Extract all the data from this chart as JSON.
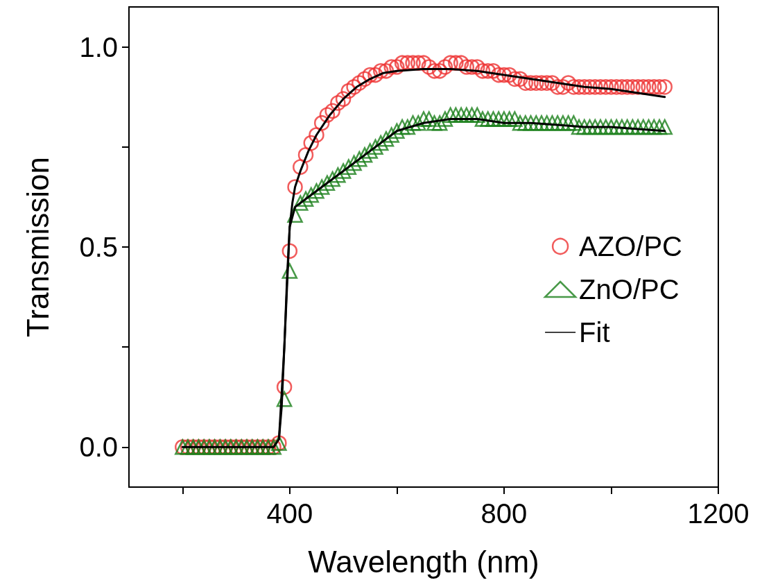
{
  "chart_data": {
    "type": "scatter",
    "xlabel": "Wavelength (nm)",
    "ylabel": "Transmission",
    "x": [
      200,
      210,
      220,
      230,
      240,
      250,
      260,
      270,
      280,
      290,
      300,
      310,
      320,
      330,
      340,
      350,
      360,
      370,
      380,
      390,
      400,
      410,
      420,
      430,
      440,
      450,
      460,
      470,
      480,
      490,
      500,
      510,
      520,
      530,
      540,
      550,
      560,
      570,
      580,
      590,
      600,
      610,
      620,
      630,
      640,
      650,
      660,
      670,
      680,
      690,
      700,
      710,
      720,
      730,
      740,
      750,
      760,
      770,
      780,
      790,
      800,
      810,
      820,
      830,
      840,
      850,
      860,
      870,
      880,
      890,
      900,
      910,
      920,
      930,
      940,
      950,
      960,
      970,
      980,
      990,
      1000,
      1010,
      1020,
      1030,
      1040,
      1050,
      1060,
      1070,
      1080,
      1090,
      1100
    ],
    "series": [
      {
        "name": "AZO/PC",
        "marker": "circle",
        "color": "#ee3333",
        "values": [
          0,
          0,
          0,
          0,
          0,
          0,
          0,
          0,
          0,
          0,
          0,
          0,
          0,
          0,
          0,
          0,
          0,
          0,
          0.01,
          0.15,
          0.49,
          0.65,
          0.7,
          0.73,
          0.76,
          0.78,
          0.81,
          0.83,
          0.84,
          0.86,
          0.87,
          0.89,
          0.9,
          0.91,
          0.92,
          0.93,
          0.93,
          0.94,
          0.94,
          0.95,
          0.95,
          0.96,
          0.96,
          0.96,
          0.96,
          0.96,
          0.95,
          0.94,
          0.94,
          0.95,
          0.96,
          0.96,
          0.96,
          0.95,
          0.95,
          0.95,
          0.94,
          0.94,
          0.94,
          0.93,
          0.93,
          0.93,
          0.92,
          0.92,
          0.91,
          0.91,
          0.91,
          0.91,
          0.91,
          0.91,
          0.9,
          0.9,
          0.91,
          0.9,
          0.9,
          0.9,
          0.9,
          0.9,
          0.9,
          0.9,
          0.9,
          0.9,
          0.9,
          0.9,
          0.9,
          0.9,
          0.9,
          0.9,
          0.9,
          0.9,
          0.9
        ]
      },
      {
        "name": "ZnO/PC",
        "marker": "triangle",
        "color": "#1a7f1a",
        "values": [
          0,
          0,
          0,
          0,
          0,
          0,
          0,
          0,
          0,
          0,
          0,
          0,
          0,
          0,
          0,
          0,
          0,
          0,
          0.01,
          0.12,
          0.44,
          0.58,
          0.61,
          0.62,
          0.63,
          0.64,
          0.65,
          0.66,
          0.67,
          0.68,
          0.69,
          0.7,
          0.71,
          0.72,
          0.73,
          0.74,
          0.75,
          0.76,
          0.77,
          0.78,
          0.79,
          0.8,
          0.8,
          0.81,
          0.81,
          0.82,
          0.82,
          0.81,
          0.81,
          0.82,
          0.83,
          0.83,
          0.83,
          0.83,
          0.83,
          0.83,
          0.82,
          0.82,
          0.82,
          0.82,
          0.82,
          0.82,
          0.82,
          0.81,
          0.81,
          0.81,
          0.81,
          0.81,
          0.81,
          0.81,
          0.81,
          0.81,
          0.81,
          0.81,
          0.8,
          0.8,
          0.8,
          0.8,
          0.8,
          0.8,
          0.8,
          0.8,
          0.8,
          0.8,
          0.8,
          0.8,
          0.8,
          0.8,
          0.8,
          0.8,
          0.8
        ]
      },
      {
        "name": "Fit",
        "type": "line",
        "marker": "none",
        "line_style": "solid",
        "color": "#000000",
        "x": [
          200,
          370,
          380,
          385,
          390,
          395,
          400,
          405,
          410,
          420,
          435,
          450,
          475,
          500,
          525,
          550,
          575,
          600,
          650,
          700,
          750,
          800,
          850,
          900,
          950,
          1000,
          1050,
          1100
        ],
        "values": [
          0,
          0,
          0.02,
          0.1,
          0.25,
          0.42,
          0.55,
          0.61,
          0.65,
          0.69,
          0.74,
          0.78,
          0.83,
          0.87,
          0.9,
          0.92,
          0.935,
          0.94,
          0.945,
          0.945,
          0.94,
          0.93,
          0.92,
          0.91,
          0.9,
          0.895,
          0.885,
          0.875
        ]
      },
      {
        "type": "line",
        "marker": "none",
        "line_style": "solid",
        "color": "#000000",
        "x": [
          380,
          390,
          400,
          410,
          430,
          450,
          500,
          550,
          600,
          650,
          700,
          750,
          800,
          850,
          900,
          950,
          1000,
          1050,
          1100
        ],
        "values": [
          0.02,
          0.25,
          0.55,
          0.6,
          0.62,
          0.64,
          0.69,
          0.74,
          0.79,
          0.81,
          0.82,
          0.82,
          0.81,
          0.81,
          0.805,
          0.8,
          0.8,
          0.795,
          0.79
        ]
      }
    ],
    "xlim": [
      100,
      1200
    ],
    "xticks": [
      {
        "value": 200,
        "label": null
      },
      400,
      {
        "value": 600,
        "label": null
      },
      800,
      {
        "value": 1000,
        "label": null
      },
      1200
    ],
    "ylim": [
      -0.1,
      1.1
    ],
    "yticks": [
      {
        "value": 0,
        "label": "0.0"
      },
      {
        "value": 0.25,
        "label": null
      },
      {
        "value": 0.5,
        "label": "0.5"
      },
      {
        "value": 0.75,
        "label": null
      },
      {
        "value": 1,
        "label": "1.0"
      }
    ],
    "legend": "right",
    "grid": false
  }
}
